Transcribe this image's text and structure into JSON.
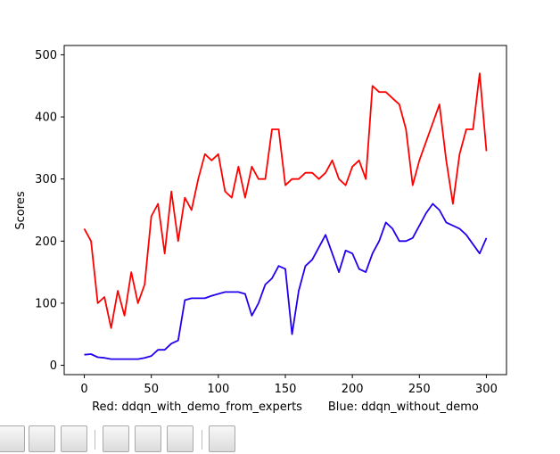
{
  "chart_data": {
    "type": "line",
    "title": "",
    "xlabel": "Red: ddqn_with_demo_from_experts       Blue: ddqn_without_demo",
    "ylabel": "Scores",
    "xlim": [
      -15,
      315
    ],
    "ylim": [
      -15,
      515
    ],
    "xticks": [
      0,
      50,
      100,
      150,
      200,
      250,
      300
    ],
    "yticks": [
      0,
      100,
      200,
      300,
      400,
      500
    ],
    "grid": false,
    "legend": "none",
    "x": {
      "start": 0,
      "end": 300,
      "step": 5
    },
    "series": [
      {
        "color": "#ff0000",
        "values": [
          220,
          200,
          100,
          110,
          60,
          120,
          80,
          150,
          100,
          130,
          240,
          260,
          180,
          280,
          200,
          270,
          250,
          300,
          340,
          330,
          340,
          280,
          270,
          320,
          270,
          320,
          300,
          300,
          380,
          380,
          290,
          300,
          300,
          310,
          310,
          300,
          310,
          330,
          300,
          290,
          320,
          330,
          300,
          450,
          440,
          440,
          430,
          420,
          380,
          290,
          330,
          360,
          390,
          420,
          330,
          260,
          340,
          380,
          380,
          470,
          345
        ]
      },
      {
        "color": "#2200ee",
        "values": [
          17,
          18,
          13,
          12,
          10,
          10,
          10,
          10,
          10,
          12,
          15,
          25,
          25,
          35,
          40,
          105,
          108,
          108,
          108,
          112,
          115,
          118,
          118,
          118,
          115,
          80,
          100,
          130,
          140,
          160,
          155,
          50,
          120,
          160,
          170,
          190,
          210,
          180,
          150,
          185,
          180,
          155,
          150,
          180,
          200,
          230,
          220,
          200,
          200,
          205,
          225,
          245,
          260,
          250,
          230,
          225,
          220,
          210,
          195,
          180,
          205
        ]
      }
    ]
  },
  "toolbar": {
    "buttons": [
      "home-icon",
      "back-icon",
      "forward-icon",
      "pan-icon",
      "zoom-icon",
      "configure-subplots-icon",
      "save-icon"
    ]
  }
}
